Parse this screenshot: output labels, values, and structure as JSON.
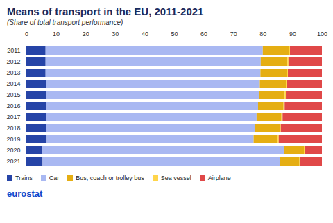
{
  "chart_data": {
    "type": "bar",
    "title": "Means of transport in the EU, 2011-2021",
    "subtitle": "(Share of total transport performance)",
    "orientation": "horizontal",
    "stacked": true,
    "categories": [
      "2011",
      "2012",
      "2013",
      "2014",
      "2015",
      "2016",
      "2017",
      "2018",
      "2019",
      "2020",
      "2021"
    ],
    "series": [
      {
        "name": "Trains",
        "color": "#2644a7",
        "values": [
          6.5,
          6.5,
          6.5,
          6.6,
          6.6,
          6.6,
          6.7,
          6.8,
          6.9,
          5.3,
          5.5
        ]
      },
      {
        "name": "Car",
        "color": "#a9b8f2",
        "values": [
          73.5,
          72.8,
          72.7,
          72.4,
          72.2,
          71.8,
          71.2,
          70.6,
          70.0,
          81.8,
          80.2
        ]
      },
      {
        "name": "Bus, coach or trolley bus",
        "color": "#e5ae13",
        "values": [
          8.8,
          9.0,
          8.9,
          8.8,
          8.6,
          8.6,
          8.4,
          8.3,
          8.1,
          6.8,
          6.7
        ]
      },
      {
        "name": "Sea vessel",
        "color": "#ffd54a",
        "values": [
          0.4,
          0.4,
          0.4,
          0.4,
          0.4,
          0.4,
          0.4,
          0.4,
          0.4,
          0.3,
          0.3
        ]
      },
      {
        "name": "Airplane",
        "color": "#e04848",
        "values": [
          10.8,
          11.3,
          11.5,
          11.8,
          12.2,
          12.6,
          13.3,
          13.9,
          14.6,
          5.8,
          7.3
        ]
      }
    ],
    "xlim": [
      0,
      100
    ],
    "xticks": [
      0,
      10,
      20,
      30,
      40,
      50,
      60,
      70,
      80,
      90,
      100
    ],
    "grid": false,
    "legend": "bottom",
    "annotations": [
      "eurostat"
    ]
  }
}
